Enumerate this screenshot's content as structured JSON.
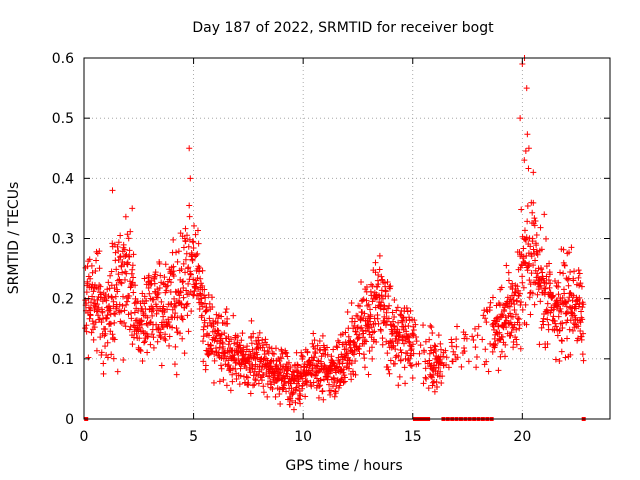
{
  "chart_data": {
    "type": "scatter",
    "title": "Day 187 of 2022, SRMTID for receiver bogt",
    "xlabel": "GPS time / hours",
    "ylabel": "SRMTID / TECUs",
    "xlim": [
      0,
      24
    ],
    "ylim": [
      0,
      0.6
    ],
    "xticks": [
      0,
      5,
      10,
      15,
      20
    ],
    "xtick_labels": [
      "0",
      "5",
      "10",
      "15",
      "20"
    ],
    "yticks": [
      0,
      0.1,
      0.2,
      0.3,
      0.4,
      0.5,
      0.6
    ],
    "ytick_labels": [
      "0",
      "0.1",
      "0.2",
      "0.3",
      "0.4",
      "0.5",
      "0.6"
    ],
    "grid": true,
    "marker": "plus",
    "color": "#ff0000",
    "envelope": {
      "x": [
        0.0,
        0.5,
        1.0,
        1.5,
        2.0,
        2.5,
        3.0,
        3.5,
        4.0,
        4.5,
        4.8,
        5.2,
        5.5,
        6.0,
        6.5,
        7.0,
        7.5,
        8.0,
        8.5,
        9.0,
        9.5,
        10.0,
        10.5,
        11.0,
        11.5,
        12.0,
        12.5,
        13.0,
        13.5,
        14.0,
        14.5,
        15.0,
        15.5,
        16.0,
        16.5,
        17.0,
        17.5,
        18.0,
        18.5,
        19.0,
        19.5,
        19.8,
        20.1,
        20.4,
        20.8,
        21.2,
        21.6,
        22.0,
        22.5,
        22.8
      ],
      "center": [
        0.2,
        0.22,
        0.17,
        0.22,
        0.24,
        0.15,
        0.19,
        0.18,
        0.2,
        0.21,
        0.26,
        0.25,
        0.15,
        0.13,
        0.12,
        0.11,
        0.1,
        0.1,
        0.09,
        0.07,
        0.06,
        0.07,
        0.09,
        0.08,
        0.08,
        0.11,
        0.15,
        0.16,
        0.2,
        0.14,
        0.13,
        0.12,
        0.1,
        0.09,
        0.1,
        0.12,
        0.13,
        0.14,
        0.15,
        0.16,
        0.18,
        0.2,
        0.28,
        0.3,
        0.22,
        0.18,
        0.17,
        0.2,
        0.19,
        0.15
      ],
      "spread": [
        0.07,
        0.08,
        0.09,
        0.1,
        0.1,
        0.06,
        0.07,
        0.07,
        0.08,
        0.09,
        0.1,
        0.06,
        0.06,
        0.05,
        0.05,
        0.04,
        0.05,
        0.05,
        0.04,
        0.04,
        0.04,
        0.04,
        0.04,
        0.04,
        0.04,
        0.05,
        0.07,
        0.07,
        0.07,
        0.06,
        0.05,
        0.05,
        0.05,
        0.05,
        0.04,
        0.04,
        0.04,
        0.04,
        0.06,
        0.06,
        0.07,
        0.09,
        0.14,
        0.11,
        0.09,
        0.07,
        0.07,
        0.08,
        0.06,
        0.06
      ]
    },
    "peaks": [
      {
        "x": 1.3,
        "y": 0.38
      },
      {
        "x": 2.2,
        "y": 0.35
      },
      {
        "x": 4.8,
        "y": 0.45
      },
      {
        "x": 4.85,
        "y": 0.4
      },
      {
        "x": 13.3,
        "y": 0.26
      },
      {
        "x": 20.0,
        "y": 0.59
      },
      {
        "x": 20.1,
        "y": 0.6
      },
      {
        "x": 20.2,
        "y": 0.55
      },
      {
        "x": 19.9,
        "y": 0.5
      },
      {
        "x": 20.3,
        "y": 0.45
      },
      {
        "x": 20.5,
        "y": 0.41
      },
      {
        "x": 21.0,
        "y": 0.34
      }
    ],
    "zero_points_x": [
      0.1,
      15.1,
      15.25,
      15.4,
      15.55,
      15.7,
      16.4,
      16.6,
      16.8,
      17.0,
      17.2,
      17.4,
      17.6,
      17.8,
      18.0,
      18.2,
      18.4,
      18.6,
      22.8
    ],
    "sample_step_hours": 0.01
  }
}
